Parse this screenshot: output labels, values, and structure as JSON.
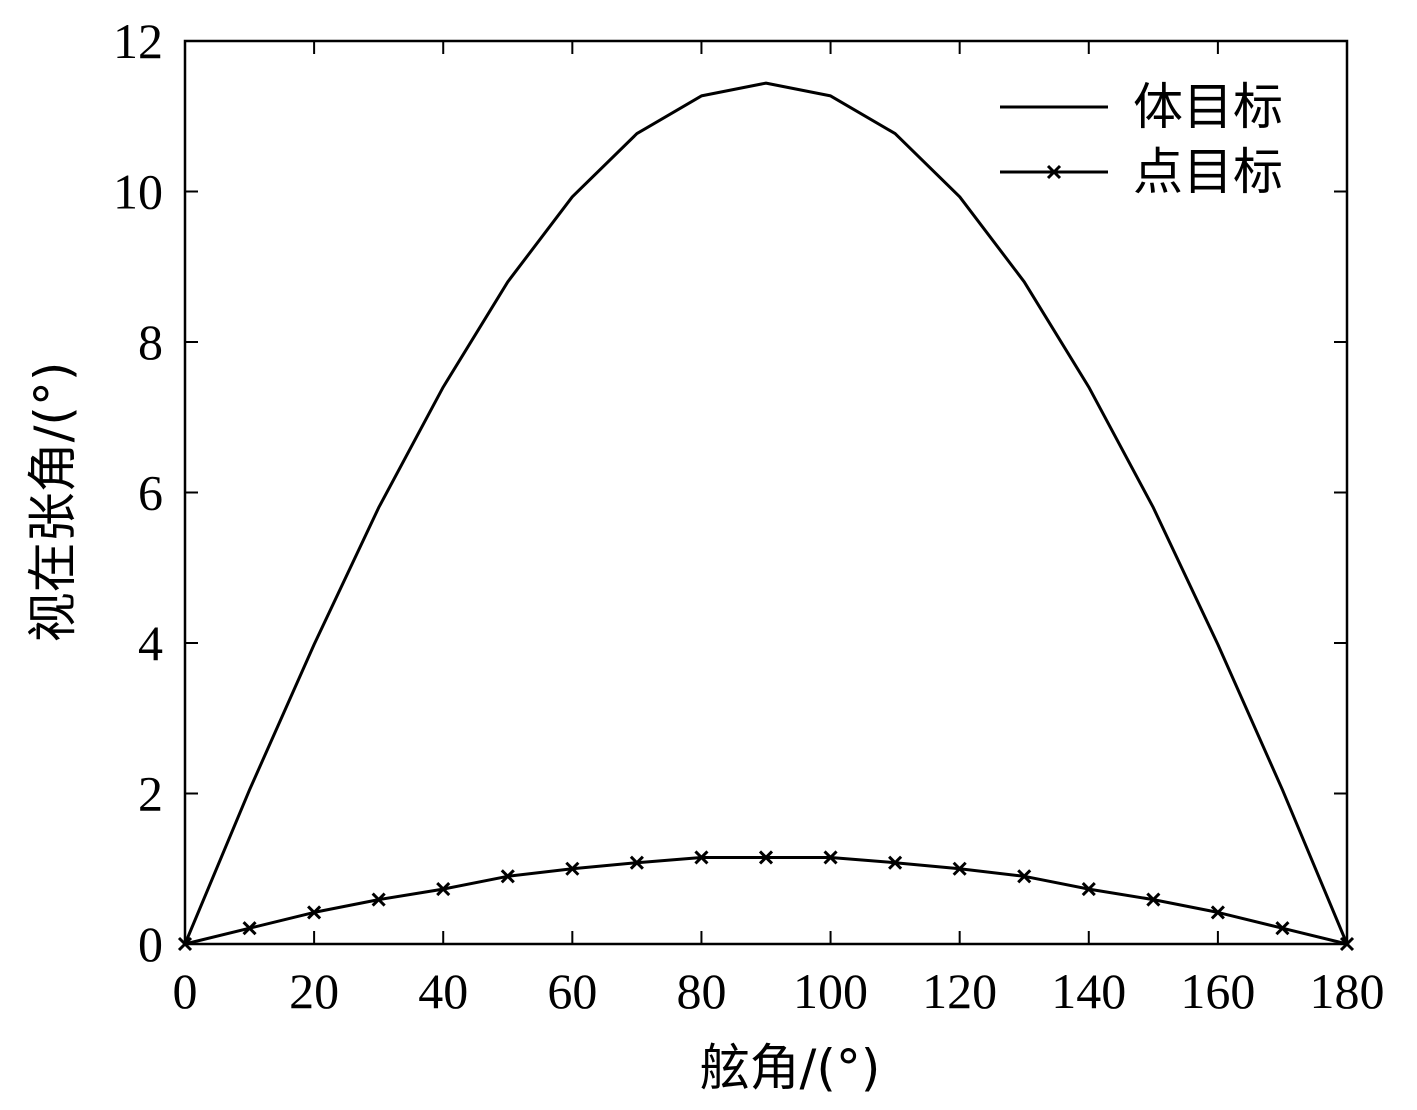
{
  "chart_data": {
    "type": "line",
    "title": "",
    "xlabel": "舷角/(°)",
    "ylabel": "视在张角/(°)",
    "xlim": [
      0,
      180
    ],
    "ylim": [
      0,
      12
    ],
    "xticks": [
      0,
      20,
      40,
      60,
      80,
      100,
      120,
      140,
      160,
      180
    ],
    "yticks": [
      0,
      2,
      4,
      6,
      8,
      10,
      12
    ],
    "grid": false,
    "legend_position": "top-right",
    "series": [
      {
        "name": "体目标",
        "marker": "none",
        "x": [
          0,
          10,
          20,
          30,
          40,
          50,
          60,
          70,
          80,
          90,
          100,
          110,
          120,
          130,
          140,
          150,
          160,
          170,
          180
        ],
        "values": [
          0,
          2.05,
          3.98,
          5.8,
          7.4,
          8.8,
          9.93,
          10.77,
          11.27,
          11.44,
          11.27,
          10.77,
          9.93,
          8.8,
          7.4,
          5.8,
          3.98,
          2.05,
          0
        ]
      },
      {
        "name": "点目标",
        "marker": "x",
        "x": [
          0,
          10,
          20,
          30,
          40,
          50,
          60,
          70,
          80,
          90,
          100,
          110,
          120,
          130,
          140,
          150,
          160,
          170,
          180
        ],
        "values": [
          0,
          0.21,
          0.42,
          0.59,
          0.73,
          0.9,
          1.0,
          1.08,
          1.15,
          1.15,
          1.15,
          1.08,
          1.0,
          0.9,
          0.73,
          0.59,
          0.42,
          0.21,
          0
        ]
      }
    ]
  }
}
